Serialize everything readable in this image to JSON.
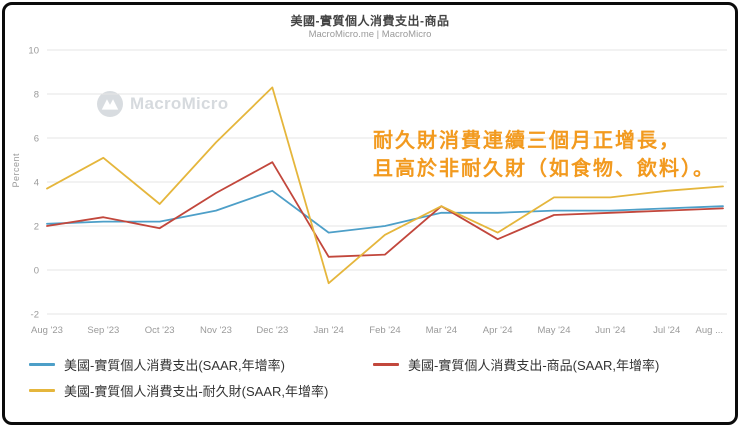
{
  "header": {
    "title": "美國-實質個人消費支出-商品",
    "subtitle": "MacroMicro.me | MacroMicro"
  },
  "watermark": {
    "label": "MacroMicro"
  },
  "annotation": {
    "line1": "耐久財消費連續三個月正增長，",
    "line2": "且高於非耐久財（如食物、飲料）。",
    "color": "#F29A1F"
  },
  "chart_data": {
    "type": "line",
    "title": "美國-實質個人消費支出-商品",
    "xlabel": "",
    "ylabel": "Percent",
    "ylim": [
      -2,
      10
    ],
    "ytick_step": 2,
    "grid": true,
    "legend_position": "bottom",
    "gridline_color": "#e6e6e6",
    "categories": [
      "Aug '23",
      "Sep '23",
      "Oct '23",
      "Nov '23",
      "Dec '23",
      "Jan '24",
      "Feb '24",
      "Mar '24",
      "Apr '24",
      "May '24",
      "Jun '24",
      "Jul '24",
      "Aug ..."
    ],
    "series": [
      {
        "name": "美國-實質個人消費支出(SAAR,年增率)",
        "color": "#4D9FC8",
        "values": [
          2.1,
          2.2,
          2.2,
          2.7,
          3.6,
          1.7,
          2.0,
          2.6,
          2.6,
          2.7,
          2.7,
          2.8,
          2.9
        ]
      },
      {
        "name": "美國-實質個人消費支出-商品(SAAR,年增率)",
        "color": "#C2473C",
        "values": [
          2.0,
          2.4,
          1.9,
          3.5,
          4.9,
          0.6,
          0.7,
          2.9,
          1.4,
          2.5,
          2.6,
          2.7,
          2.8
        ]
      },
      {
        "name": "美國-實質個人消費支出-耐久財(SAAR,年增率)",
        "color": "#E5B63C",
        "values": [
          3.7,
          5.1,
          3.0,
          5.8,
          8.3,
          -0.6,
          1.6,
          2.9,
          1.7,
          3.3,
          3.3,
          3.6,
          3.8
        ]
      }
    ]
  }
}
